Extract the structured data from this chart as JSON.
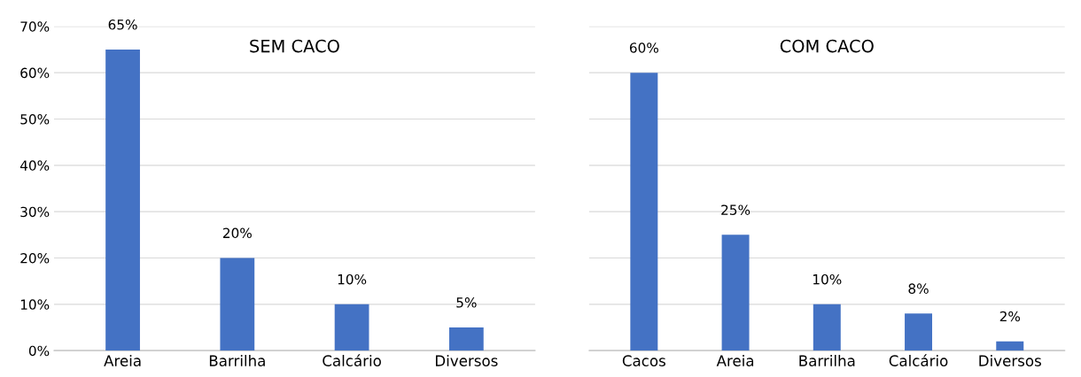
{
  "chart_data": [
    {
      "type": "bar",
      "title": "SEM CACO",
      "categories": [
        "Areia",
        "Barrilha",
        "Calcário",
        "Diversos"
      ],
      "values": [
        65,
        20,
        10,
        5
      ],
      "value_labels": [
        "65%",
        "20%",
        "10%",
        "5%"
      ],
      "color": "#4472c4",
      "ylim": [
        0,
        70
      ],
      "yticks": [
        {
          "value": 0,
          "label": "0%"
        },
        {
          "value": 10,
          "label": "10%"
        },
        {
          "value": 20,
          "label": "20%"
        },
        {
          "value": 30,
          "label": "30%"
        },
        {
          "value": 40,
          "label": "40%"
        },
        {
          "value": 50,
          "label": "50%"
        },
        {
          "value": 60,
          "label": "60%"
        },
        {
          "value": 70,
          "label": "70%"
        }
      ],
      "grid": "y"
    },
    {
      "type": "bar",
      "title": "COM CACO",
      "categories": [
        "Cacos",
        "Areia",
        "Barrilha",
        "Calcário",
        "Diversos"
      ],
      "values": [
        60,
        25,
        10,
        8,
        2
      ],
      "value_labels": [
        "60%",
        "25%",
        "10%",
        "8%",
        "2%"
      ],
      "color": "#4472c4",
      "ylim": [
        0,
        70
      ],
      "yticks": [
        {
          "value": 0,
          "label": null
        },
        {
          "value": 10,
          "label": null
        },
        {
          "value": 20,
          "label": null
        },
        {
          "value": 30,
          "label": null
        },
        {
          "value": 40,
          "label": null
        },
        {
          "value": 50,
          "label": null
        },
        {
          "value": 60,
          "label": null
        },
        {
          "value": 70,
          "label": null
        }
      ],
      "grid": "y",
      "tick_labels": "x"
    }
  ]
}
